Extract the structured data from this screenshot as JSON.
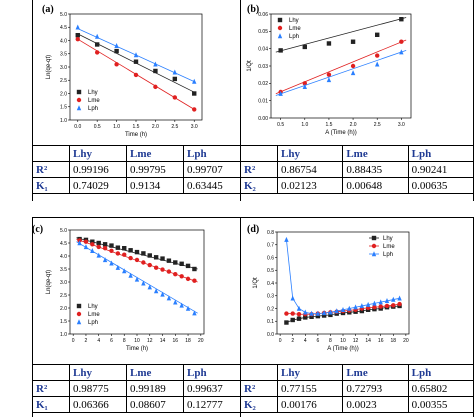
{
  "panels": [
    {
      "label": "(a)",
      "chart_data": {
        "type": "scatter",
        "xlabel": "Time (h)",
        "ylabel": "Ln(qe-qt)",
        "xlim": [
          -0.2,
          3.2
        ],
        "ylim": [
          1.0,
          5.0
        ],
        "xticks": [
          "0.0",
          "0.5",
          "1.0",
          "1.5",
          "2.0",
          "2.5",
          "3.0"
        ],
        "xtick_values": [
          0,
          0.5,
          1,
          1.5,
          2,
          2.5,
          3
        ],
        "yticks": [
          "1.0",
          "1.5",
          "2.0",
          "2.5",
          "3.0",
          "3.5",
          "4.0",
          "4.5",
          "5.0"
        ],
        "ytick_values": [
          1,
          1.5,
          2,
          2.5,
          3,
          3.5,
          4,
          4.5,
          5
        ],
        "legend_position": "bottom-left",
        "series": [
          {
            "name": "Lhy",
            "color": "#222222",
            "marker": "square",
            "x": [
              0,
              0.5,
              1,
              1.5,
              2,
              2.5,
              3
            ],
            "y": [
              4.2,
              3.85,
              3.6,
              3.2,
              2.85,
              2.55,
              2.0
            ],
            "fit": [
              [
                0,
                4.25
              ],
              [
                3,
                2.05
              ]
            ]
          },
          {
            "name": "Lme",
            "color": "#e02020",
            "marker": "circle",
            "x": [
              0,
              0.5,
              1,
              1.5,
              2,
              2.5,
              3
            ],
            "y": [
              4.05,
              3.55,
              3.1,
              2.7,
              2.25,
              1.85,
              1.4
            ],
            "fit": [
              [
                0,
                4.05
              ],
              [
                3,
                1.4
              ]
            ]
          },
          {
            "name": "Lph",
            "color": "#2a7fff",
            "marker": "triangle",
            "x": [
              0,
              0.5,
              1,
              1.5,
              2,
              2.5,
              3
            ],
            "y": [
              4.5,
              4.15,
              3.8,
              3.45,
              3.1,
              2.8,
              2.45
            ],
            "fit": [
              [
                0,
                4.45
              ],
              [
                3,
                2.45
              ]
            ]
          }
        ]
      },
      "table": {
        "headers": [
          "Lhy",
          "Lme",
          "Lph"
        ],
        "rows": [
          {
            "label": "R²",
            "values": [
              "0.99196",
              "0.99795",
              "0.99707"
            ]
          },
          {
            "label": "K₁",
            "values": [
              "0.74029",
              "0.9134",
              "0.63445"
            ]
          }
        ]
      }
    },
    {
      "label": "(b)",
      "chart_data": {
        "type": "scatter",
        "xlabel": "A (Time (h))",
        "ylabel": "1/Qt",
        "xlim": [
          0.3,
          3.2
        ],
        "ylim": [
          0.0,
          0.06
        ],
        "xticks": [
          "0.5",
          "1.0",
          "1.5",
          "2.0",
          "2.5",
          "3.0"
        ],
        "xtick_values": [
          0.5,
          1,
          1.5,
          2,
          2.5,
          3
        ],
        "yticks": [
          "0.00",
          "0.01",
          "0.02",
          "0.03",
          "0.04",
          "0.05",
          "0.06"
        ],
        "ytick_values": [
          0,
          0.01,
          0.02,
          0.03,
          0.04,
          0.05,
          0.06
        ],
        "legend_position": "top-left",
        "series": [
          {
            "name": "Lhy",
            "color": "#222222",
            "marker": "square",
            "x": [
              0.5,
              1,
              1.5,
              2,
              2.5,
              3
            ],
            "y": [
              0.039,
              0.041,
              0.043,
              0.044,
              0.048,
              0.057
            ],
            "fit": [
              [
                0.4,
                0.038
              ],
              [
                3.1,
                0.058
              ]
            ]
          },
          {
            "name": "Lme",
            "color": "#e02020",
            "marker": "circle",
            "x": [
              0.5,
              1,
              1.5,
              2,
              2.5,
              3
            ],
            "y": [
              0.015,
              0.02,
              0.025,
              0.03,
              0.036,
              0.044
            ],
            "fit": [
              [
                0.4,
                0.014
              ],
              [
                3.1,
                0.045
              ]
            ]
          },
          {
            "name": "Lph",
            "color": "#2a7fff",
            "marker": "triangle",
            "x": [
              0.5,
              1,
              1.5,
              2,
              2.5,
              3
            ],
            "y": [
              0.014,
              0.018,
              0.022,
              0.026,
              0.031,
              0.038
            ],
            "fit": [
              [
                0.4,
                0.013
              ],
              [
                3.1,
                0.039
              ]
            ]
          }
        ]
      },
      "table": {
        "headers": [
          "Lhy",
          "Lme",
          "Lph"
        ],
        "rows": [
          {
            "label": "R²",
            "values": [
              "0.86754",
              "0.88435",
              "0.90241"
            ]
          },
          {
            "label": "K₂",
            "values": [
              "0.02123",
              "0.00648",
              "0.00635"
            ]
          }
        ]
      }
    },
    {
      "label": "(c)",
      "chart_data": {
        "type": "scatter",
        "xlabel": "Time (h)",
        "ylabel": "Ln(qe-qt)",
        "xlim": [
          -0.5,
          20.5
        ],
        "ylim": [
          1.0,
          5.0
        ],
        "xticks": [
          "0",
          "2",
          "4",
          "6",
          "8",
          "10",
          "12",
          "14",
          "16",
          "18",
          "20"
        ],
        "xtick_values": [
          0,
          2,
          4,
          6,
          8,
          10,
          12,
          14,
          16,
          18,
          20
        ],
        "yticks": [
          "1.0",
          "1.5",
          "2.0",
          "2.5",
          "3.0",
          "3.5",
          "4.0",
          "4.5",
          "5.0"
        ],
        "ytick_values": [
          1,
          1.5,
          2,
          2.5,
          3,
          3.5,
          4,
          4.5,
          5
        ],
        "legend_position": "bottom-left",
        "series": [
          {
            "name": "Lhy",
            "color": "#222222",
            "marker": "square",
            "x": [
              1,
              2,
              3,
              4,
              5,
              6,
              7,
              8,
              9,
              10,
              11,
              12,
              13,
              14,
              15,
              16,
              17,
              18,
              19
            ],
            "y": [
              4.65,
              4.62,
              4.55,
              4.5,
              4.45,
              4.4,
              4.32,
              4.3,
              4.22,
              4.15,
              4.1,
              4.02,
              3.95,
              3.9,
              3.82,
              3.75,
              3.7,
              3.62,
              3.5
            ],
            "fit": [
              [
                0.5,
                4.7
              ],
              [
                19.5,
                3.5
              ]
            ]
          },
          {
            "name": "Lme",
            "color": "#e02020",
            "marker": "circle",
            "x": [
              1,
              2,
              3,
              4,
              5,
              6,
              7,
              8,
              9,
              10,
              11,
              12,
              13,
              14,
              15,
              16,
              17,
              18,
              19
            ],
            "y": [
              4.6,
              4.55,
              4.45,
              4.35,
              4.3,
              4.2,
              4.1,
              4.05,
              3.92,
              3.85,
              3.75,
              3.65,
              3.55,
              3.48,
              3.4,
              3.3,
              3.22,
              3.12,
              3.05
            ],
            "fit": [
              [
                0.5,
                4.65
              ],
              [
                19.5,
                3.0
              ]
            ]
          },
          {
            "name": "Lph",
            "color": "#2a7fff",
            "marker": "triangle",
            "x": [
              1,
              2,
              3,
              4,
              5,
              6,
              7,
              8,
              9,
              10,
              11,
              12,
              13,
              14,
              15,
              16,
              17,
              18,
              19
            ],
            "y": [
              4.5,
              4.35,
              4.2,
              4.02,
              3.85,
              3.72,
              3.55,
              3.42,
              3.25,
              3.1,
              2.95,
              2.8,
              2.65,
              2.52,
              2.38,
              2.22,
              2.1,
              1.98,
              1.8
            ],
            "fit": [
              [
                0.5,
                4.55
              ],
              [
                19.5,
                1.8
              ]
            ]
          }
        ]
      },
      "table": {
        "headers": [
          "Lhy",
          "Lme",
          "Lph"
        ],
        "rows": [
          {
            "label": "R²",
            "values": [
              "0.98775",
              "0.99189",
              "0.99637"
            ]
          },
          {
            "label": "K₁",
            "values": [
              "0.06366",
              "0.08607",
              "0.12777"
            ]
          }
        ]
      }
    },
    {
      "label": "(d)",
      "chart_data": {
        "type": "line",
        "xlabel": "A (Time (h))",
        "ylabel": "1/Qt",
        "xlim": [
          -0.5,
          20.5
        ],
        "ylim": [
          0.0,
          0.8
        ],
        "xticks": [
          "0",
          "2",
          "4",
          "6",
          "8",
          "10",
          "12",
          "14",
          "16",
          "18",
          "20"
        ],
        "xtick_values": [
          0,
          2,
          4,
          6,
          8,
          10,
          12,
          14,
          16,
          18,
          20
        ],
        "yticks": [
          "0.0",
          "0.1",
          "0.2",
          "0.3",
          "0.4",
          "0.5",
          "0.6",
          "0.7",
          "0.8"
        ],
        "ytick_values": [
          0,
          0.1,
          0.2,
          0.3,
          0.4,
          0.5,
          0.6,
          0.7,
          0.8
        ],
        "legend_position": "top-right",
        "series": [
          {
            "name": "Lhy",
            "color": "#222222",
            "marker": "square",
            "x": [
              1,
              2,
              3,
              4,
              5,
              6,
              7,
              8,
              9,
              10,
              11,
              12,
              13,
              14,
              15,
              16,
              17,
              18,
              19
            ],
            "y": [
              0.09,
              0.11,
              0.12,
              0.13,
              0.135,
              0.14,
              0.145,
              0.15,
              0.16,
              0.165,
              0.17,
              0.175,
              0.18,
              0.19,
              0.195,
              0.2,
              0.21,
              0.215,
              0.22
            ]
          },
          {
            "name": "Lme",
            "color": "#e02020",
            "marker": "circle",
            "x": [
              1,
              2,
              3,
              4,
              5,
              6,
              7,
              8,
              9,
              10,
              11,
              12,
              13,
              14,
              15,
              16,
              17,
              18,
              19
            ],
            "y": [
              0.16,
              0.16,
              0.155,
              0.155,
              0.155,
              0.16,
              0.165,
              0.17,
              0.175,
              0.18,
              0.185,
              0.19,
              0.2,
              0.205,
              0.21,
              0.215,
              0.22,
              0.225,
              0.235
            ]
          },
          {
            "name": "Lph",
            "color": "#2a7fff",
            "marker": "triangle",
            "x": [
              1,
              2,
              3,
              4,
              5,
              6,
              7,
              8,
              9,
              10,
              11,
              12,
              13,
              14,
              15,
              16,
              17,
              18,
              19
            ],
            "y": [
              0.74,
              0.28,
              0.2,
              0.17,
              0.16,
              0.16,
              0.165,
              0.17,
              0.18,
              0.19,
              0.2,
              0.21,
              0.22,
              0.23,
              0.24,
              0.25,
              0.26,
              0.27,
              0.28
            ]
          }
        ]
      },
      "table": {
        "headers": [
          "Lhy",
          "Lme",
          "Lph"
        ],
        "rows": [
          {
            "label": "R²",
            "values": [
              "0.77155",
              "0.72793",
              "0.65802"
            ]
          },
          {
            "label": "K₂",
            "values": [
              "0.00176",
              "0.0023",
              "0.00355"
            ]
          }
        ]
      }
    }
  ]
}
